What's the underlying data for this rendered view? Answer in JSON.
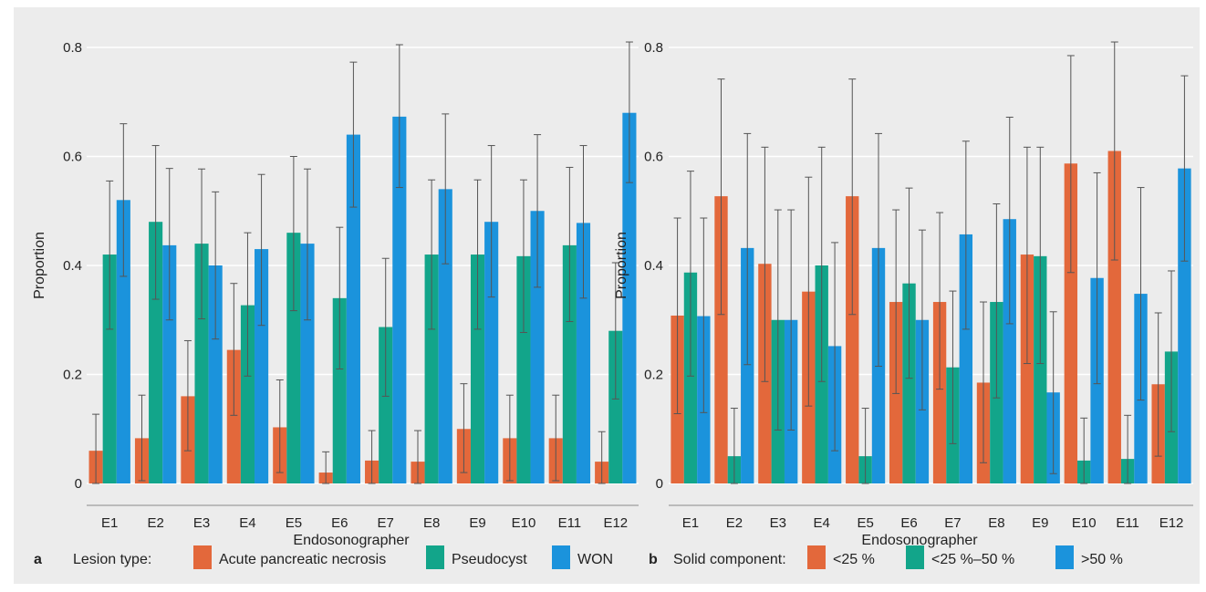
{
  "chart_data": [
    {
      "type": "bar",
      "panel_letter": "a",
      "xlabel": "Endosonographer",
      "ylabel": "Proportion",
      "ylim": [
        0,
        0.8
      ],
      "yticks": [
        "0",
        "0.2",
        "0.4",
        "0.6",
        "0.8"
      ],
      "categories": [
        "E1",
        "E2",
        "E3",
        "E4",
        "E5",
        "E6",
        "E7",
        "E8",
        "E9",
        "E10",
        "E11",
        "E12"
      ],
      "legend_title": "Lesion type:",
      "series": [
        {
          "name": "Acute pancreatic necrosis",
          "color": "#e3683b",
          "values": [
            0.06,
            0.083,
            0.16,
            0.245,
            0.103,
            0.02,
            0.042,
            0.04,
            0.1,
            0.083,
            0.083,
            0.04
          ],
          "ci_low": [
            0.0,
            0.005,
            0.06,
            0.125,
            0.02,
            0.0,
            0.0,
            0.0,
            0.02,
            0.005,
            0.005,
            0.0
          ],
          "ci_high": [
            0.127,
            0.162,
            0.262,
            0.367,
            0.19,
            0.058,
            0.097,
            0.097,
            0.183,
            0.162,
            0.162,
            0.095
          ]
        },
        {
          "name": "Pseudocyst",
          "color": "#12a58a",
          "values": [
            0.42,
            0.48,
            0.44,
            0.327,
            0.46,
            0.34,
            0.287,
            0.42,
            0.42,
            0.417,
            0.437,
            0.28
          ],
          "ci_low": [
            0.283,
            0.338,
            0.302,
            0.197,
            0.317,
            0.21,
            0.16,
            0.283,
            0.283,
            0.277,
            0.297,
            0.155
          ],
          "ci_high": [
            0.555,
            0.62,
            0.577,
            0.46,
            0.6,
            0.47,
            0.413,
            0.557,
            0.557,
            0.557,
            0.58,
            0.405
          ]
        },
        {
          "name": "WON",
          "color": "#1b93dc",
          "values": [
            0.52,
            0.437,
            0.4,
            0.43,
            0.44,
            0.64,
            0.673,
            0.54,
            0.48,
            0.5,
            0.478,
            0.68
          ],
          "ci_low": [
            0.38,
            0.3,
            0.265,
            0.29,
            0.3,
            0.507,
            0.543,
            0.403,
            0.342,
            0.36,
            0.34,
            0.552
          ],
          "ci_high": [
            0.66,
            0.578,
            0.535,
            0.567,
            0.577,
            0.773,
            0.805,
            0.678,
            0.62,
            0.64,
            0.62,
            0.81
          ]
        }
      ]
    },
    {
      "type": "bar",
      "panel_letter": "b",
      "xlabel": "Endosonographer",
      "ylabel": "Proportion",
      "ylim": [
        0,
        0.8
      ],
      "yticks": [
        "0",
        "0.2",
        "0.4",
        "0.6",
        "0.8"
      ],
      "categories": [
        "E1",
        "E2",
        "E3",
        "E4",
        "E5",
        "E6",
        "E7",
        "E8",
        "E9",
        "E10",
        "E11",
        "E12"
      ],
      "legend_title": "Solid component:",
      "series": [
        {
          "name": "<25 %",
          "color": "#e3683b",
          "values": [
            0.308,
            0.527,
            0.403,
            0.352,
            0.527,
            0.333,
            0.333,
            0.185,
            0.42,
            0.587,
            0.61,
            0.182
          ],
          "ci_low": [
            0.128,
            0.31,
            0.187,
            0.142,
            0.31,
            0.165,
            0.173,
            0.038,
            0.22,
            0.387,
            0.41,
            0.05
          ],
          "ci_high": [
            0.487,
            0.742,
            0.617,
            0.562,
            0.742,
            0.502,
            0.497,
            0.333,
            0.617,
            0.785,
            0.81,
            0.313
          ]
        },
        {
          "name": "<25 %–50 %",
          "color": "#12a58a",
          "values": [
            0.387,
            0.05,
            0.3,
            0.4,
            0.05,
            0.367,
            0.213,
            0.333,
            0.417,
            0.042,
            0.045,
            0.242
          ],
          "ci_low": [
            0.197,
            0.0,
            0.098,
            0.187,
            0.0,
            0.193,
            0.073,
            0.157,
            0.22,
            0.0,
            0.0,
            0.095
          ],
          "ci_high": [
            0.573,
            0.138,
            0.502,
            0.617,
            0.138,
            0.542,
            0.353,
            0.513,
            0.617,
            0.12,
            0.125,
            0.39
          ]
        },
        {
          "name": ">50 %",
          "color": "#1b93dc",
          "values": [
            0.307,
            0.432,
            0.3,
            0.252,
            0.432,
            0.3,
            0.457,
            0.485,
            0.167,
            0.377,
            0.348,
            0.578
          ],
          "ci_low": [
            0.13,
            0.218,
            0.098,
            0.06,
            0.215,
            0.135,
            0.283,
            0.293,
            0.018,
            0.183,
            0.153,
            0.408
          ],
          "ci_high": [
            0.487,
            0.642,
            0.502,
            0.442,
            0.642,
            0.465,
            0.628,
            0.672,
            0.315,
            0.57,
            0.543,
            0.748
          ]
        }
      ]
    }
  ]
}
